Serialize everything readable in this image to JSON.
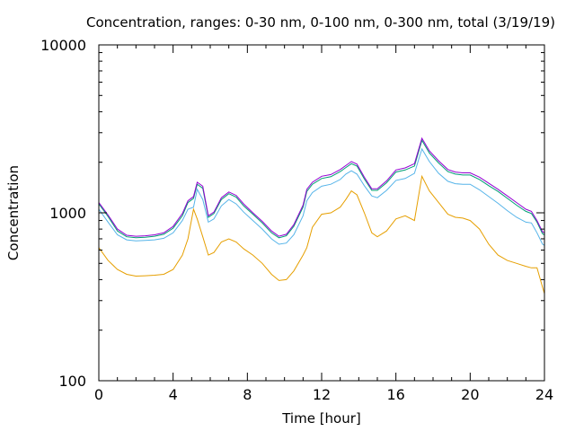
{
  "chart_data": {
    "type": "line",
    "title": "Concentration, ranges: 0-30 nm, 0-100 nm, 0-300 nm, total (3/19/19)",
    "xlabel": "Time [hour]",
    "ylabel": "Concentration",
    "xlim": [
      0,
      24
    ],
    "ylim": [
      100,
      10000
    ],
    "yscale": "log",
    "x_ticks": [
      0,
      4,
      8,
      12,
      16,
      20,
      24
    ],
    "y_ticks": [
      100,
      1000,
      10000
    ],
    "grid": false,
    "legend": "none",
    "series": [
      {
        "color": "#e69f00",
        "x": [
          0,
          0.5,
          1,
          1.5,
          2,
          2.5,
          3,
          3.5,
          4,
          4.5,
          4.8,
          5.1,
          5.3,
          5.6,
          5.9,
          6.2,
          6.6,
          7.0,
          7.4,
          7.8,
          8.3,
          8.8,
          9.3,
          9.7,
          10.1,
          10.5,
          11.0,
          11.2,
          11.5,
          12.0,
          12.5,
          13.0,
          13.3,
          13.6,
          13.9,
          14.3,
          14.7,
          15.0,
          15.5,
          16.0,
          16.5,
          17.0,
          17.4,
          17.8,
          18.3,
          18.8,
          19.2,
          19.6,
          20.0,
          20.5,
          21.0,
          21.5,
          22.0,
          22.5,
          23.0,
          23.3,
          23.6,
          23.9,
          24.0
        ],
        "y": [
          620,
          520,
          460,
          430,
          420,
          422,
          425,
          430,
          460,
          560,
          700,
          1050,
          920,
          720,
          560,
          580,
          670,
          700,
          670,
          610,
          560,
          500,
          430,
          395,
          400,
          450,
          560,
          620,
          820,
          980,
          1000,
          1080,
          1200,
          1350,
          1280,
          1000,
          760,
          720,
          780,
          920,
          960,
          900,
          1650,
          1350,
          1150,
          980,
          940,
          930,
          900,
          800,
          650,
          560,
          520,
          500,
          480,
          470,
          470,
          360,
          330
        ]
      },
      {
        "color": "#56b4e9",
        "x": [
          0,
          0.5,
          1,
          1.5,
          2,
          2.5,
          3,
          3.5,
          4,
          4.5,
          4.8,
          5.1,
          5.3,
          5.6,
          5.9,
          6.2,
          6.6,
          7.0,
          7.4,
          7.8,
          8.3,
          8.8,
          9.3,
          9.7,
          10.1,
          10.5,
          11.0,
          11.2,
          11.5,
          12.0,
          12.5,
          13.0,
          13.3,
          13.6,
          13.9,
          14.3,
          14.7,
          15.0,
          15.5,
          16.0,
          16.5,
          17.0,
          17.4,
          17.8,
          18.3,
          18.8,
          19.2,
          19.6,
          20.0,
          20.5,
          21.0,
          21.5,
          22.0,
          22.5,
          23.0,
          23.3,
          23.6,
          23.9,
          24.0
        ],
        "y": [
          1050,
          880,
          740,
          690,
          680,
          685,
          690,
          705,
          760,
          900,
          1050,
          1080,
          1380,
          1200,
          880,
          920,
          1100,
          1200,
          1130,
          1010,
          900,
          800,
          700,
          650,
          660,
          740,
          960,
          1180,
          1320,
          1440,
          1480,
          1580,
          1700,
          1780,
          1700,
          1450,
          1260,
          1230,
          1360,
          1560,
          1600,
          1720,
          2400,
          2020,
          1720,
          1540,
          1490,
          1480,
          1480,
          1370,
          1250,
          1140,
          1030,
          940,
          880,
          870,
          760,
          650,
          640
        ]
      },
      {
        "color": "#009e73",
        "x": [
          0,
          0.5,
          1,
          1.5,
          2,
          2.5,
          3,
          3.5,
          4,
          4.5,
          4.8,
          5.1,
          5.3,
          5.6,
          5.9,
          6.2,
          6.6,
          7.0,
          7.4,
          7.8,
          8.3,
          8.8,
          9.3,
          9.7,
          10.1,
          10.5,
          11.0,
          11.2,
          11.5,
          12.0,
          12.5,
          13.0,
          13.3,
          13.6,
          13.9,
          14.3,
          14.7,
          15.0,
          15.5,
          16.0,
          16.5,
          17.0,
          17.4,
          17.8,
          18.3,
          18.8,
          19.2,
          19.6,
          20.0,
          20.5,
          21.0,
          21.5,
          22.0,
          22.5,
          23.0,
          23.3,
          23.6,
          23.9,
          24.0
        ],
        "y": [
          1130,
          950,
          780,
          720,
          710,
          715,
          725,
          745,
          810,
          960,
          1150,
          1220,
          1480,
          1400,
          940,
          990,
          1200,
          1300,
          1240,
          1100,
          980,
          870,
          760,
          710,
          730,
          830,
          1080,
          1340,
          1480,
          1600,
          1640,
          1760,
          1860,
          1960,
          1900,
          1590,
          1360,
          1360,
          1510,
          1750,
          1800,
          1900,
          2700,
          2270,
          1980,
          1760,
          1700,
          1680,
          1680,
          1580,
          1450,
          1340,
          1220,
          1110,
          1020,
          990,
          880,
          750,
          740
        ]
      },
      {
        "color": "#9400d3",
        "x": [
          0,
          0.5,
          1,
          1.5,
          2,
          2.5,
          3,
          3.5,
          4,
          4.5,
          4.8,
          5.1,
          5.3,
          5.6,
          5.9,
          6.2,
          6.6,
          7.0,
          7.4,
          7.8,
          8.3,
          8.8,
          9.3,
          9.7,
          10.1,
          10.5,
          11.0,
          11.2,
          11.5,
          12.0,
          12.5,
          13.0,
          13.3,
          13.6,
          13.9,
          14.3,
          14.7,
          15.0,
          15.5,
          16.0,
          16.5,
          17.0,
          17.4,
          17.8,
          18.3,
          18.8,
          19.2,
          19.6,
          20.0,
          20.5,
          21.0,
          21.5,
          22.0,
          22.5,
          23.0,
          23.3,
          23.6,
          23.9,
          24.0
        ],
        "y": [
          1150,
          970,
          800,
          735,
          725,
          730,
          740,
          760,
          830,
          990,
          1180,
          1250,
          1520,
          1440,
          960,
          1010,
          1230,
          1330,
          1270,
          1130,
          1000,
          890,
          780,
          725,
          745,
          850,
          1110,
          1380,
          1520,
          1650,
          1690,
          1810,
          1910,
          2020,
          1950,
          1630,
          1390,
          1390,
          1550,
          1800,
          1850,
          1960,
          2780,
          2340,
          2040,
          1810,
          1750,
          1730,
          1730,
          1630,
          1500,
          1380,
          1260,
          1150,
          1050,
          1020,
          900,
          770,
          760
        ]
      }
    ]
  }
}
